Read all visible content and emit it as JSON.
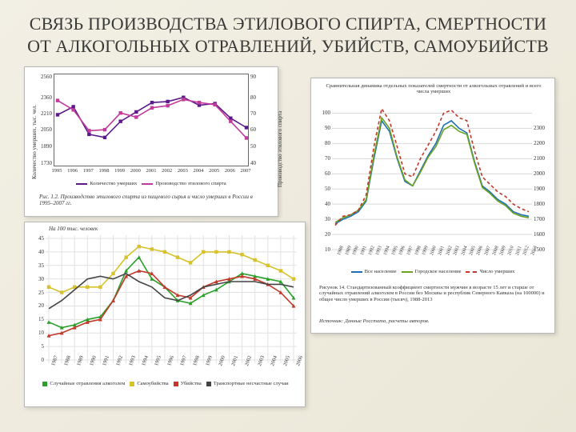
{
  "title": "СВЯЗЬ ПРОИЗВОДСТВА ЭТИЛОВОГО СПИРТА, СМЕРТНОСТИ ОТ АЛКОГОЛЬНЫХ ОТРАВЛЕНИЙ, УБИЙСТВ, САМОУБИЙСТВ",
  "chart1": {
    "type": "line",
    "years": [
      1995,
      1996,
      1997,
      1998,
      1999,
      2000,
      2001,
      2002,
      2003,
      2004,
      2005,
      2006,
      2007
    ],
    "deaths": [
      2203,
      2280,
      2015,
      1985,
      2140,
      2230,
      2320,
      2330,
      2370,
      2295,
      2310,
      2170,
      2080
    ],
    "production": [
      2340,
      2250,
      2050,
      2060,
      2220,
      2180,
      2270,
      2290,
      2350,
      2320,
      2300,
      2140,
      1980
    ],
    "yleft": {
      "min": 1730,
      "max": 2560,
      "ticks": [
        1730,
        1890,
        2050,
        2210,
        2360,
        2560
      ]
    },
    "yright": {
      "min": 40,
      "max": 90,
      "ticks": [
        40,
        50,
        60,
        70,
        80,
        90
      ]
    },
    "yleft_title": "Количество умерших, тыс. чел.",
    "yright_title": "Производство этилового спирта",
    "series_colors": {
      "deaths": "#5b1a8b",
      "production": "#c23a9a"
    },
    "marker": "square",
    "legend": [
      "Количество умерших",
      "Производство этилового спирта"
    ],
    "caption": "Рис. 1.2. Производство этилового спирта из пищевого сырья и число умерших в России в 1995–2007 гг."
  },
  "chart2": {
    "type": "line",
    "title": "На 100 тыс. человек",
    "years": [
      1987,
      1988,
      1989,
      1990,
      1991,
      1992,
      1993,
      1994,
      1995,
      1996,
      1997,
      1998,
      1999,
      2000,
      2001,
      2002,
      2003,
      2004,
      2005,
      2006
    ],
    "series": [
      {
        "name": "Случайные отравления алкоголем",
        "color": "#2aa02a",
        "marker": "triangle",
        "vals": [
          14,
          12,
          13,
          15,
          16,
          22,
          33,
          38,
          30,
          27,
          22,
          21,
          24,
          26,
          29,
          32,
          31,
          30,
          29,
          23
        ]
      },
      {
        "name": "Самоубийства",
        "color": "#d6c22a",
        "marker": "square",
        "vals": [
          27,
          25,
          27,
          27,
          27,
          32,
          38,
          42,
          41,
          40,
          38,
          36,
          40,
          40,
          40,
          39,
          37,
          35,
          33,
          30
        ]
      },
      {
        "name": "Убийства",
        "color": "#c0392b",
        "marker": "triangle",
        "vals": [
          9,
          10,
          12,
          14,
          15,
          22,
          31,
          33,
          32,
          27,
          24,
          23,
          27,
          29,
          30,
          31,
          30,
          28,
          25,
          20
        ]
      },
      {
        "name": "Транспортные несчастные случаи",
        "color": "#444",
        "marker": "none",
        "vals": [
          19,
          22,
          26,
          30,
          31,
          30,
          32,
          29,
          27,
          23,
          22,
          24,
          27,
          28,
          29,
          29,
          29,
          28,
          28,
          27
        ]
      }
    ],
    "yaxis": {
      "min": 0,
      "max": 45,
      "ticks": [
        0,
        5,
        10,
        15,
        20,
        25,
        30,
        35,
        40,
        45
      ]
    },
    "grid_color": "#e2e2e2",
    "caption_lines": [
      "Случайные отравления алкоголем",
      "Самоубийства",
      "Убийства",
      "Транспортные несчастные случаи"
    ]
  },
  "chart3": {
    "type": "line",
    "title": "Сравнительная динамика отдельных показателей смертности от алкогольных отравлений и всего числа умерших",
    "years": [
      1988,
      1989,
      1990,
      1991,
      1992,
      1993,
      1994,
      1995,
      1996,
      1997,
      1998,
      1999,
      2000,
      2001,
      2002,
      2003,
      2004,
      2005,
      2006,
      2007,
      2008,
      2009,
      2010,
      2011,
      2012,
      2013
    ],
    "series": [
      {
        "name": "Все население",
        "color": "#1f6fb2",
        "dash": "solid",
        "vals": [
          27,
          30,
          32,
          35,
          42,
          70,
          95,
          88,
          70,
          55,
          52,
          62,
          72,
          80,
          92,
          95,
          90,
          87,
          68,
          52,
          48,
          43,
          40,
          35,
          33,
          32
        ]
      },
      {
        "name": "Городское население",
        "color": "#6aa324",
        "dash": "solid",
        "vals": [
          28,
          31,
          33,
          36,
          43,
          72,
          97,
          90,
          71,
          56,
          52,
          61,
          71,
          78,
          89,
          92,
          88,
          86,
          67,
          51,
          47,
          42,
          39,
          34,
          32,
          31
        ]
      },
      {
        "name": "Число умерших",
        "color": "#c0392b",
        "dash": "dashed",
        "vals": [
          26,
          32,
          33,
          36,
          46,
          78,
          103,
          95,
          78,
          60,
          58,
          70,
          79,
          88,
          100,
          102,
          97,
          95,
          75,
          58,
          53,
          48,
          45,
          40,
          37,
          35
        ]
      }
    ],
    "yleft": {
      "min": 10,
      "max": 105,
      "ticks": [
        10,
        20,
        30,
        40,
        50,
        60,
        70,
        80,
        90,
        100
      ]
    },
    "yright": {
      "min": 1450,
      "max": 2400,
      "ticks": [
        1500,
        1600,
        1700,
        1800,
        1900,
        2000,
        2100,
        2200,
        2300
      ]
    },
    "grid_color": "#d8d8d8",
    "caption": "Рисунок 14. Стандартизованный коэффициент смертности мужчин в возрасте 15 лет и старше от случайных отравлений алкоголем в России без Москвы и республик Северного Кавказа (на 100000) и общее число умерших в России (тысяч), 1988-2013",
    "source": "Источник: Данные Росстата, расчеты авторов."
  }
}
